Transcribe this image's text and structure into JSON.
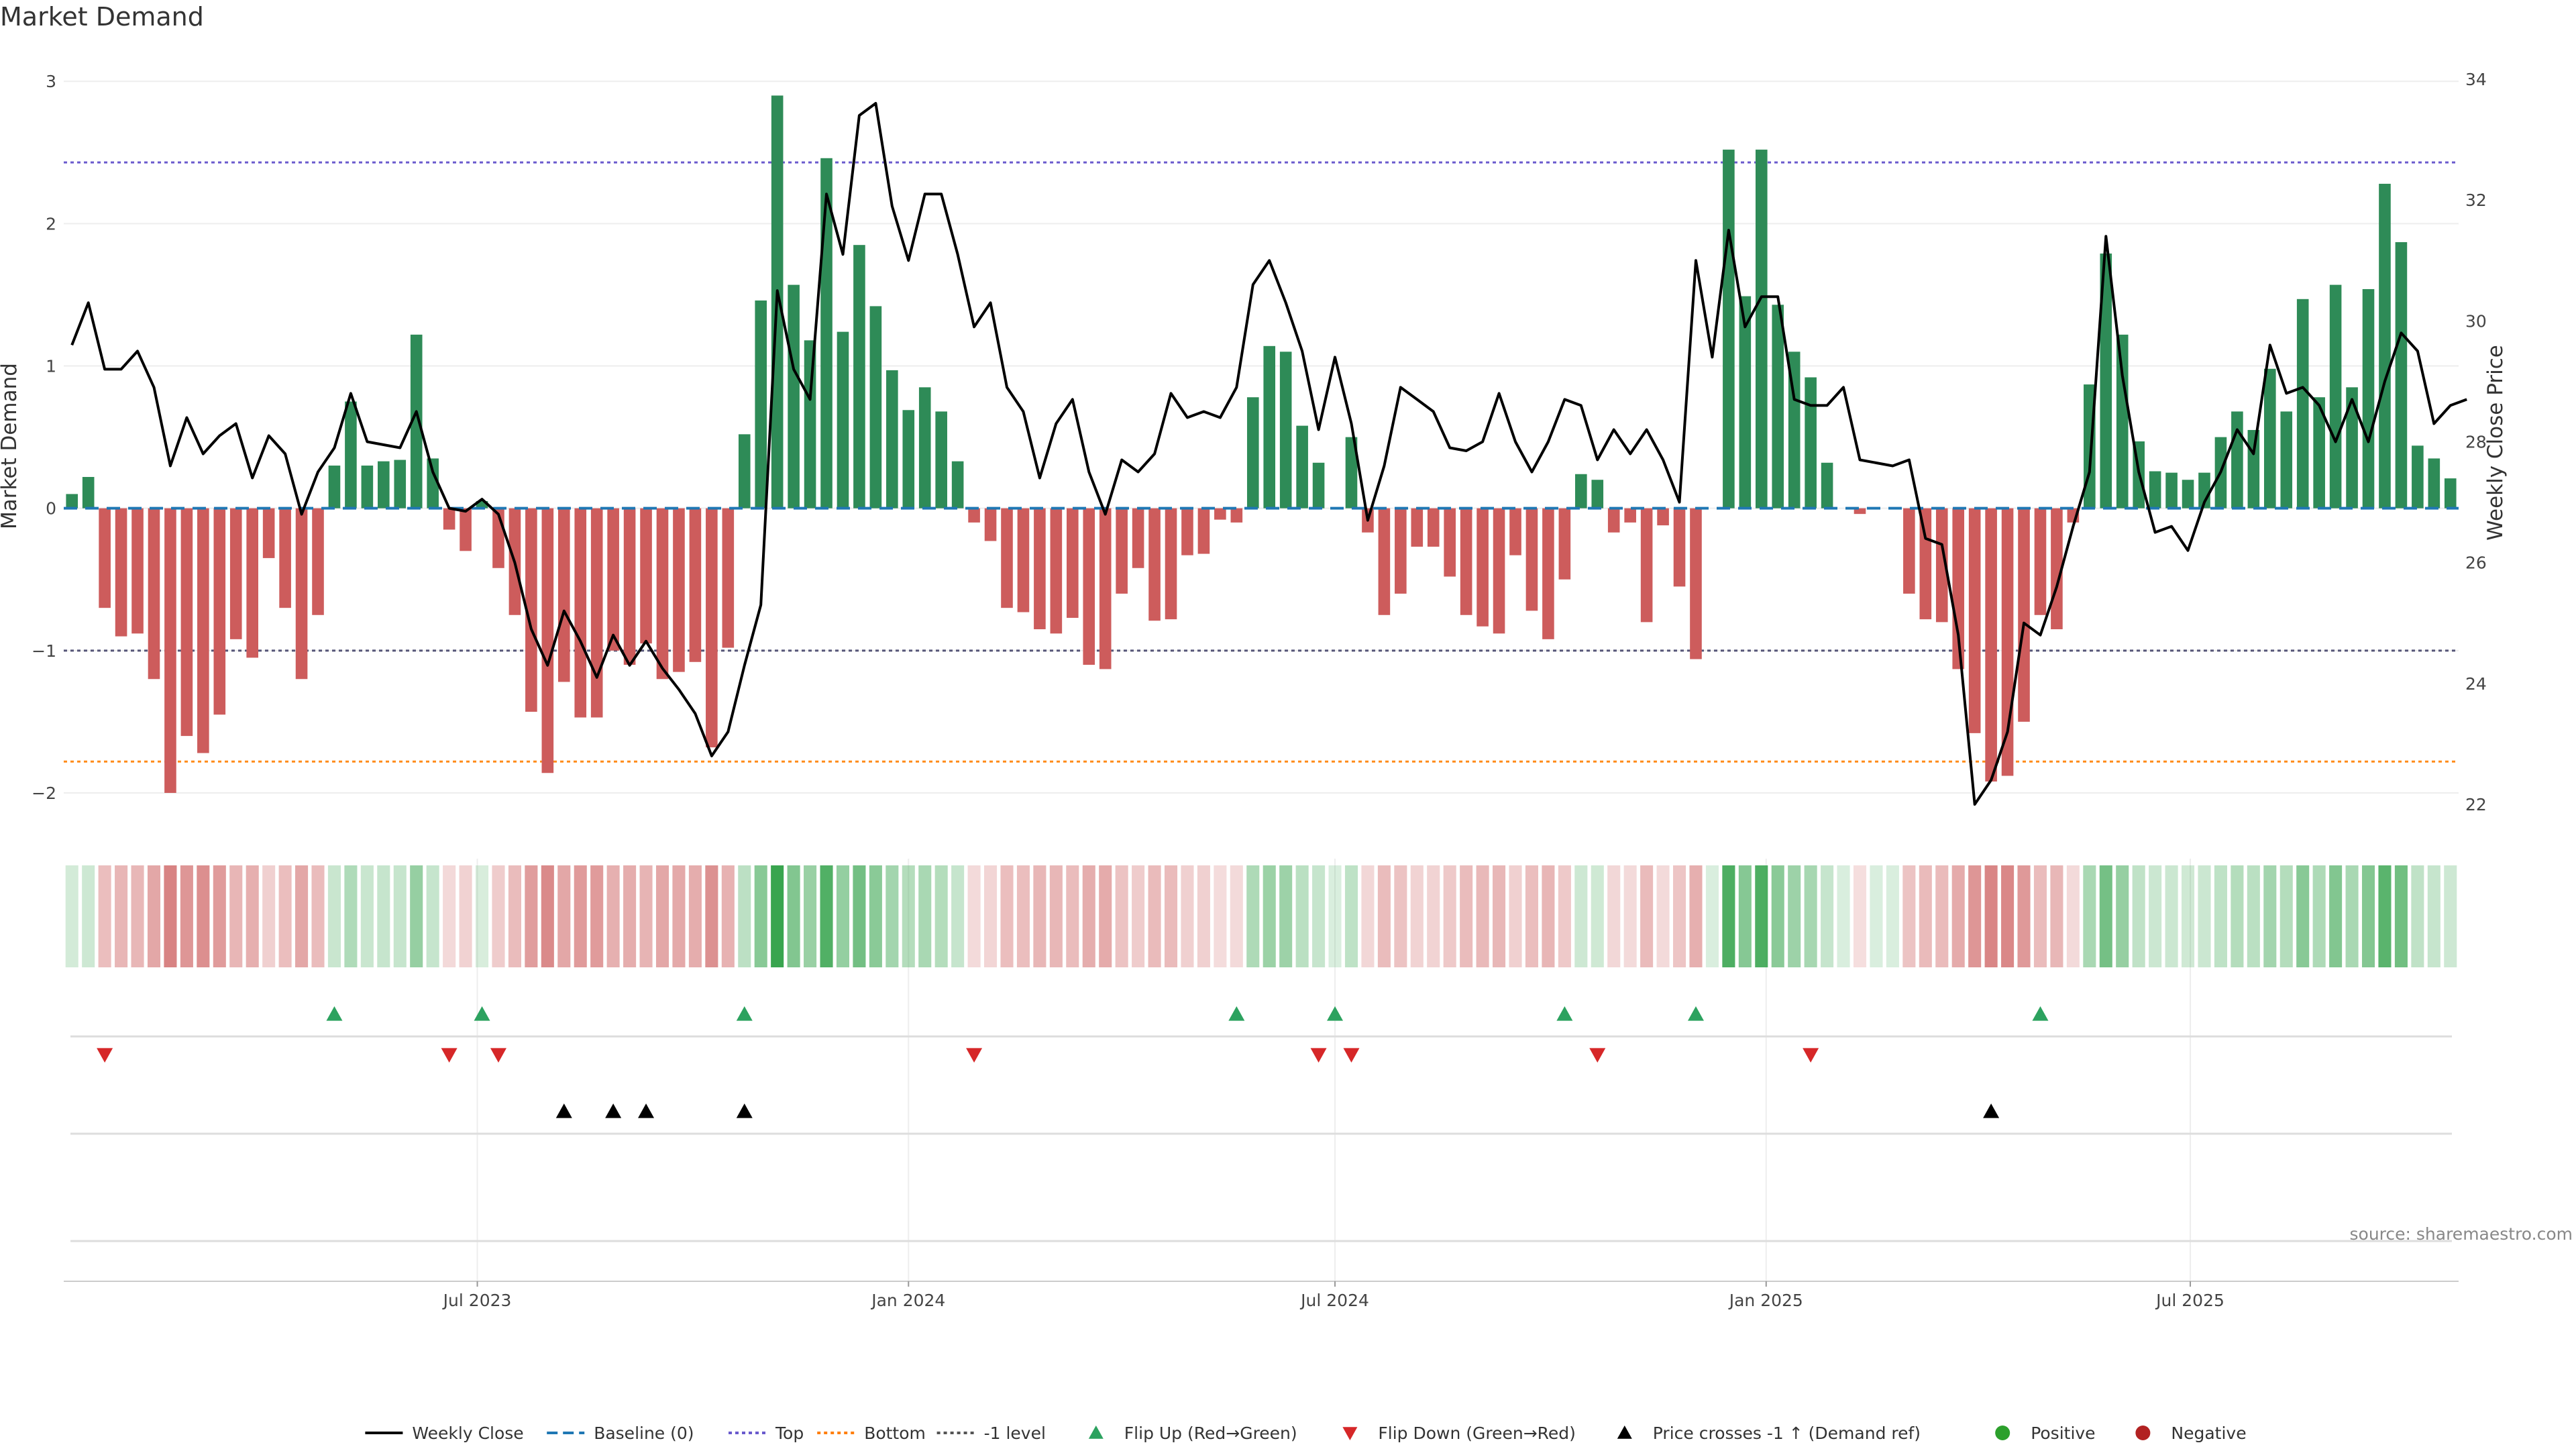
{
  "chart_data": {
    "type": "bar",
    "title": "Market Demand",
    "ylabel": "Market Demand",
    "y2label": "Weekly Close Price",
    "ylim": [
      -2.25,
      3.1
    ],
    "y2lim": [
      21.6,
      34.2
    ],
    "yticks": [
      -2,
      -1,
      0,
      1,
      2,
      3
    ],
    "y2ticks": [
      22,
      24,
      26,
      28,
      30,
      32,
      34
    ],
    "x_start": "2023-01-09",
    "x_step_days": 7,
    "xticks": [
      {
        "label": "Jul 2023",
        "date": "2023-07-01"
      },
      {
        "label": "Jan 2024",
        "date": "2024-01-01"
      },
      {
        "label": "Jul 2024",
        "date": "2024-07-01"
      },
      {
        "label": "Jan 2025",
        "date": "2025-01-01"
      },
      {
        "label": "Jul 2025",
        "date": "2025-07-01"
      }
    ],
    "reference_lines": {
      "top": 2.43,
      "bottom": -1.78,
      "minus_one": -1.0,
      "baseline": 0
    },
    "series": [
      {
        "name": "Market Demand",
        "type": "bar",
        "values": [
          0.1,
          0.22,
          -0.7,
          -0.9,
          -0.88,
          -1.2,
          -2.0,
          -1.6,
          -1.72,
          -1.45,
          -0.92,
          -1.05,
          -0.35,
          -0.7,
          -1.2,
          -0.75,
          0.3,
          0.75,
          0.3,
          0.33,
          0.34,
          1.22,
          0.35,
          -0.15,
          -0.3,
          0.05,
          -0.42,
          -0.75,
          -1.43,
          -1.86,
          -1.22,
          -1.47,
          -1.47,
          -1.0,
          -1.1,
          -0.95,
          -1.2,
          -1.15,
          -1.08,
          -1.68,
          -0.98,
          0.52,
          1.46,
          2.9,
          1.57,
          1.18,
          2.46,
          1.24,
          1.85,
          1.42,
          0.97,
          0.69,
          0.85,
          0.68,
          0.33,
          -0.1,
          -0.23,
          -0.7,
          -0.73,
          -0.85,
          -0.88,
          -0.77,
          -1.1,
          -1.13,
          -0.6,
          -0.42,
          -0.79,
          -0.78,
          -0.33,
          -0.32,
          -0.08,
          -0.1,
          0.78,
          1.14,
          1.1,
          0.58,
          0.32,
          0.0,
          0.5,
          -0.17,
          -0.75,
          -0.6,
          -0.27,
          -0.27,
          -0.48,
          -0.75,
          -0.83,
          -0.88,
          -0.33,
          -0.72,
          -0.92,
          -0.5,
          0.24,
          0.2,
          -0.17,
          -0.1,
          -0.8,
          -0.12,
          -0.55,
          -1.06,
          0.0,
          2.52,
          1.49,
          2.52,
          1.43,
          1.1,
          0.92,
          0.32,
          0.0,
          -0.04,
          0.0,
          0.0,
          -0.6,
          -0.78,
          -0.8,
          -1.13,
          -1.58,
          -1.92,
          -1.88,
          -1.5,
          -0.75,
          -0.85,
          -0.1,
          0.87,
          1.79,
          1.22,
          0.47,
          0.26,
          0.25,
          0.2,
          0.25,
          0.5,
          0.68,
          0.55,
          0.98,
          0.68,
          1.47,
          0.78,
          1.57,
          0.85,
          1.54,
          2.28,
          1.87,
          0.44,
          0.35,
          0.21
        ]
      },
      {
        "name": "Weekly Close",
        "type": "line",
        "axis": "right",
        "values": [
          29.6,
          30.3,
          29.2,
          29.2,
          29.5,
          28.9,
          27.6,
          28.4,
          27.8,
          28.1,
          28.3,
          27.4,
          28.1,
          27.8,
          26.8,
          27.5,
          27.9,
          28.8,
          28.0,
          27.95,
          27.9,
          28.5,
          27.5,
          26.9,
          26.85,
          27.05,
          26.8,
          26.0,
          24.9,
          24.3,
          25.2,
          24.7,
          24.1,
          24.8,
          24.3,
          24.7,
          24.25,
          23.9,
          23.5,
          22.8,
          23.2,
          24.3,
          25.3,
          30.5,
          29.2,
          28.7,
          32.1,
          31.1,
          33.4,
          33.6,
          31.9,
          31.0,
          32.1,
          32.1,
          31.1,
          29.9,
          30.3,
          28.9,
          28.5,
          27.4,
          28.3,
          28.7,
          27.5,
          26.8,
          27.7,
          27.5,
          27.8,
          28.8,
          28.4,
          28.5,
          28.4,
          28.9,
          30.6,
          31.0,
          30.3,
          29.5,
          28.2,
          29.4,
          28.3,
          26.7,
          27.6,
          28.9,
          28.7,
          28.5,
          27.9,
          27.85,
          28.0,
          28.8,
          28.0,
          27.5,
          28.0,
          28.7,
          28.6,
          27.7,
          28.2,
          27.8,
          28.2,
          27.7,
          27.0,
          31.0,
          29.4,
          31.5,
          29.9,
          30.4,
          30.4,
          28.7,
          28.6,
          28.6,
          28.9,
          27.7,
          27.65,
          27.6,
          27.7,
          26.4,
          26.3,
          24.8,
          22.0,
          22.4,
          23.2,
          25.0,
          24.8,
          25.6,
          26.6,
          27.5,
          31.4,
          29.1,
          27.5,
          26.5,
          26.6,
          26.2,
          27.0,
          27.5,
          28.2,
          27.8,
          29.6,
          28.8,
          28.9,
          28.6,
          28.0,
          28.7,
          28.0,
          29.0,
          29.8,
          29.5,
          28.3,
          28.6,
          28.7
        ]
      }
    ],
    "flip_up_indices": [
      16,
      25,
      41,
      71,
      77,
      91,
      99,
      120
    ],
    "flip_down_indices": [
      2,
      23,
      26,
      55,
      76,
      78,
      93,
      106
    ],
    "price_cross_up_indices": [
      30,
      33,
      35,
      41,
      117
    ],
    "legend_position": "bottom",
    "grid": true
  },
  "legend": {
    "items": [
      {
        "label": "Weekly Close",
        "symbol": "line-solid",
        "color": "#000000"
      },
      {
        "label": "Baseline (0)",
        "symbol": "line-dashed",
        "color": "#1f77b4"
      },
      {
        "label": "Top",
        "symbol": "line-dotted",
        "color": "#6a5acd"
      },
      {
        "label": "Bottom",
        "symbol": "line-dotted",
        "color": "#ff7f0e"
      },
      {
        "label": "-1 level",
        "symbol": "line-dotted",
        "color": "#555555"
      },
      {
        "label": "Flip Up (Red→Green)",
        "symbol": "triangle-up",
        "color": "#2ca25f"
      },
      {
        "label": "Flip Down (Green→Red)",
        "symbol": "triangle-down",
        "color": "#d62728"
      },
      {
        "label": "Price crosses -1 ↑ (Demand ref)",
        "symbol": "triangle-up",
        "color": "#000000"
      },
      {
        "label": "Positive",
        "symbol": "dot",
        "color": "#2ca02c"
      },
      {
        "label": "Negative",
        "symbol": "dot",
        "color": "#b22222"
      }
    ]
  },
  "source_text": "source: sharemaestro.com",
  "colors": {
    "positive_bar": "#2e8b57",
    "negative_bar": "#cd5c5c",
    "price_line": "#000000"
  }
}
